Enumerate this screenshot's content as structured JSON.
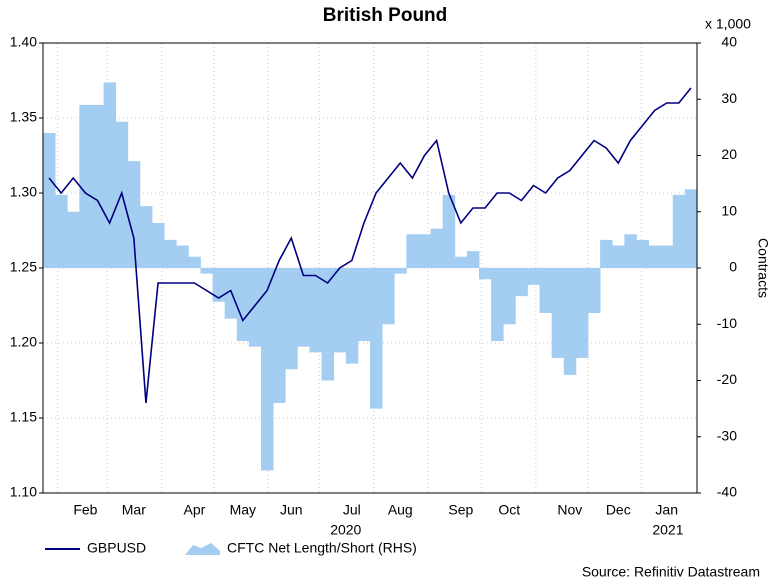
{
  "chart_data": {
    "type": "line-area",
    "title": "British Pound",
    "y2_unit_label": "x 1,000",
    "y2_axis_label": "Contracts",
    "source": "Source: Refinitiv Datastream",
    "x_group_labels": [
      "2020",
      "2021"
    ],
    "categories": [
      null,
      null,
      null,
      "Feb",
      null,
      null,
      null,
      "Mar",
      null,
      null,
      null,
      null,
      "Apr",
      null,
      null,
      null,
      "May",
      null,
      null,
      null,
      "Jun",
      null,
      null,
      null,
      null,
      "Jul",
      null,
      null,
      null,
      "Aug",
      null,
      null,
      null,
      null,
      "Sep",
      null,
      null,
      null,
      "Oct",
      null,
      null,
      null,
      null,
      "Nov",
      null,
      null,
      null,
      "Dec",
      null,
      null,
      null,
      "Jan",
      null,
      null
    ],
    "series": [
      {
        "name": "GBPUSD",
        "color": "#000080",
        "axis": "y",
        "kind": "line",
        "values": [
          1.31,
          1.3,
          1.31,
          1.3,
          1.295,
          1.28,
          1.3,
          1.27,
          1.16,
          1.24,
          1.24,
          1.24,
          1.24,
          1.235,
          1.23,
          1.235,
          1.215,
          1.225,
          1.235,
          1.255,
          1.27,
          1.245,
          1.245,
          1.24,
          1.25,
          1.255,
          1.28,
          1.3,
          1.31,
          1.32,
          1.31,
          1.325,
          1.335,
          1.3,
          1.28,
          1.29,
          1.29,
          1.3,
          1.3,
          1.295,
          1.305,
          1.3,
          1.31,
          1.315,
          1.325,
          1.335,
          1.33,
          1.32,
          1.335,
          1.345,
          1.355,
          1.36,
          1.36,
          1.37
        ]
      },
      {
        "name": "CFTC Net Length/Short (RHS)",
        "color": "#a4cdf2",
        "axis": "y2",
        "kind": "area",
        "values": [
          24,
          13,
          10,
          29,
          29,
          33,
          26,
          19,
          11,
          8,
          5,
          4,
          2,
          -1,
          -6,
          -9,
          -13,
          -14,
          -36,
          -24,
          -18,
          -14,
          -15,
          -20,
          -15,
          -17,
          -13,
          -25,
          -10,
          -1,
          6,
          6,
          7,
          13,
          2,
          3,
          -2,
          -13,
          -10,
          -5,
          -3,
          -8,
          -16,
          -19,
          -16,
          -8,
          5,
          4,
          6,
          5,
          4,
          4,
          13,
          14
        ]
      }
    ],
    "ylim": [
      1.1,
      1.4
    ],
    "yticks": [
      {
        "value": 1.1,
        "label": "1.10"
      },
      1.15,
      {
        "value": 1.2,
        "label": "1.20"
      },
      1.25,
      {
        "value": 1.3,
        "label": "1.30"
      },
      1.35,
      {
        "value": 1.4,
        "label": "1.40"
      }
    ],
    "y2lim": [
      -40,
      40
    ],
    "y2ticks": [
      -40,
      -30,
      -20,
      -10,
      0,
      10,
      20,
      30,
      40
    ],
    "grid": true
  }
}
